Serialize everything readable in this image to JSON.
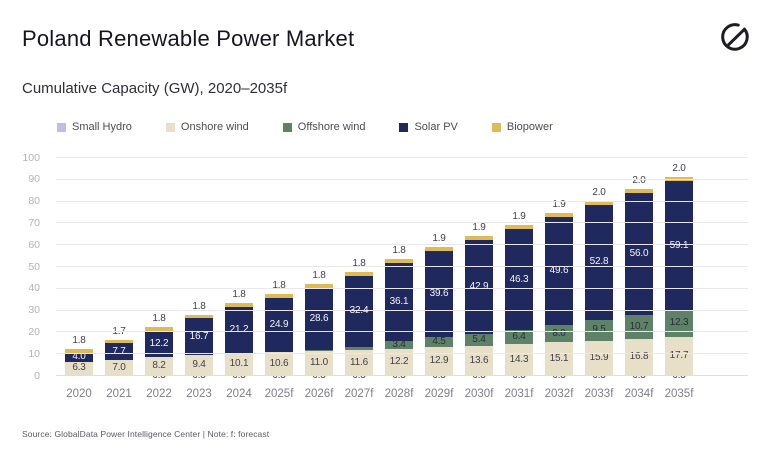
{
  "header": {
    "title": "Poland Renewable Power Market",
    "logo_icon": "globaldata-logo"
  },
  "subtitle": "Cumulative Capacity (GW), 2020–2035f",
  "footer": {
    "source": "Source: GlobalData Power Intelligence Center | Note: f: forecast"
  },
  "chart_data": {
    "type": "bar",
    "variant": "stacked",
    "title": "Poland Renewable Power Market",
    "subtitle": "Cumulative Capacity (GW), 2020–2035f",
    "unit": "GW",
    "xlabel": "",
    "ylabel": "",
    "ylim": [
      0,
      100
    ],
    "ytick_step": 10,
    "yticks": [
      0,
      10,
      20,
      30,
      40,
      50,
      60,
      70,
      80,
      90,
      100
    ],
    "grid": true,
    "legend_position": "top",
    "axis_colors": {
      "y_tick_label": "#b2b2b9",
      "x_tick_label": "#7e7e88",
      "gridline": "#e9e9ed"
    },
    "categories": [
      "2020",
      "2021",
      "2022",
      "2023",
      "2024",
      "2025f",
      "2026f",
      "2027f",
      "2028f",
      "2029f",
      "2030f",
      "2031f",
      "2032f",
      "2033f",
      "2034f",
      "2035f"
    ],
    "series": [
      {
        "name": "Small Hydro",
        "color": "#b9bfe8",
        "label_pos": "base",
        "label_color": "#3f3f48",
        "values": [
          0.3,
          0.3,
          0.3,
          0.3,
          0.3,
          0.3,
          0.3,
          0.3,
          0.3,
          0.3,
          0.3,
          0.3,
          0.3,
          0.3,
          0.3,
          0.3
        ],
        "labels": [
          "",
          "",
          "0.3",
          "0.3",
          "0.3",
          "0.3",
          "0.3",
          "0.3",
          "0.3",
          "0.3",
          "0.3",
          "0.3",
          "0.3",
          "0.3",
          "0.3",
          "0.3"
        ]
      },
      {
        "name": "Onshore wind",
        "color": "#e8dfc9",
        "label_pos": "center",
        "label_color": "#3f3f48",
        "values": [
          6.3,
          7.0,
          8.2,
          9.4,
          10.1,
          10.6,
          11.0,
          11.6,
          12.2,
          12.9,
          13.6,
          14.3,
          15.1,
          15.9,
          16.8,
          17.7
        ],
        "labels": [
          "6.3",
          "7.0",
          "8.2",
          "9.4",
          "10.1",
          "10.6",
          "11.0",
          "11.6",
          "12.2",
          "12.9",
          "13.6",
          "14.3",
          "15.1",
          "15.9",
          "16.8",
          "17.7"
        ]
      },
      {
        "name": "Offshore wind",
        "color": "#5d8268",
        "label_pos": "center",
        "label_color": "#2d2d36",
        "values": [
          0,
          0,
          0,
          0,
          0,
          0,
          0.6,
          1.5,
          3.4,
          4.5,
          5.4,
          6.4,
          8.0,
          9.5,
          10.7,
          12.3
        ],
        "labels": [
          "",
          "",
          "",
          "",
          "",
          "",
          "",
          "",
          "3.4",
          "4.5",
          "5.4",
          "6.4",
          "8.0",
          "9.5",
          "10.7",
          "12.3"
        ]
      },
      {
        "name": "Solar PV",
        "color": "#20295e",
        "label_pos": "center",
        "label_color": "#f4f4f8",
        "values": [
          4.0,
          7.7,
          12.2,
          16.7,
          21.2,
          24.9,
          28.6,
          32.4,
          36.1,
          39.6,
          42.9,
          46.3,
          49.6,
          52.8,
          56.0,
          59.1
        ],
        "labels": [
          "4.0",
          "7.7",
          "12.2",
          "16.7",
          "21.2",
          "24.9",
          "28.6",
          "32.4",
          "36.1",
          "39.6",
          "42.9",
          "46.3",
          "49.6",
          "52.8",
          "56.0",
          "59.1"
        ]
      },
      {
        "name": "Biopower",
        "color": "#dfbb56",
        "label_pos": "above",
        "label_color": "#3f3f48",
        "values": [
          1.8,
          1.7,
          1.8,
          1.8,
          1.8,
          1.8,
          1.8,
          1.8,
          1.8,
          1.9,
          1.9,
          1.9,
          1.9,
          2.0,
          2.0,
          2.0
        ],
        "labels": [
          "1.8",
          "1.7",
          "1.8",
          "1.8",
          "1.8",
          "1.8",
          "1.8",
          "1.8",
          "1.8",
          "1.9",
          "1.9",
          "1.9",
          "1.9",
          "2.0",
          "2.0",
          "2.0"
        ]
      }
    ]
  }
}
